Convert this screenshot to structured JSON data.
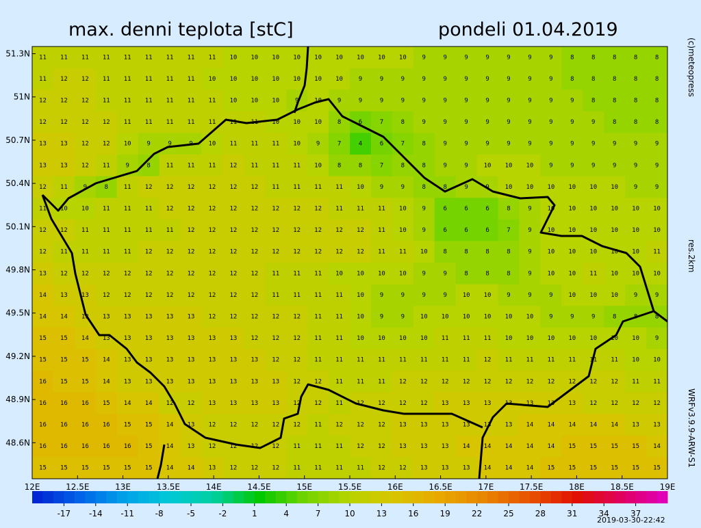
{
  "header": {
    "title": "max. denni teplota [stC]",
    "date": "pondeli 01.04.2019"
  },
  "side_texts": {
    "copyright": "(c)meteopress",
    "resolution": "res.2km",
    "model": "WRFv3.9.9-ARW-S1",
    "timestamp": "2019-03-30-22:42"
  },
  "map": {
    "xlim": [
      12,
      19
    ],
    "ylim": [
      48.35,
      51.35
    ],
    "xticks": [
      {
        "value": 12,
        "label": "12E"
      },
      {
        "value": 12.5,
        "label": "12.5E"
      },
      {
        "value": 13,
        "label": "13E"
      },
      {
        "value": 13.5,
        "label": "13.5E"
      },
      {
        "value": 14,
        "label": "14E"
      },
      {
        "value": 14.5,
        "label": "14.5E"
      },
      {
        "value": 15,
        "label": "15E"
      },
      {
        "value": 15.5,
        "label": "15.5E"
      },
      {
        "value": 16,
        "label": "16E"
      },
      {
        "value": 16.5,
        "label": "16.5E"
      },
      {
        "value": 17,
        "label": "17E"
      },
      {
        "value": 17.5,
        "label": "17.5E"
      },
      {
        "value": 18,
        "label": "18E"
      },
      {
        "value": 18.5,
        "label": "18.5E"
      },
      {
        "value": 19,
        "label": "19E"
      }
    ],
    "yticks": [
      {
        "value": 51.3,
        "label": "51.3N"
      },
      {
        "value": 51,
        "label": "51N"
      },
      {
        "value": 50.7,
        "label": "50.7N"
      },
      {
        "value": 50.4,
        "label": "50.4N"
      },
      {
        "value": 50.1,
        "label": "50.1N"
      },
      {
        "value": 49.8,
        "label": "49.8N"
      },
      {
        "value": 49.5,
        "label": "49.5N"
      },
      {
        "value": 49.2,
        "label": "49.2N"
      },
      {
        "value": 48.9,
        "label": "48.9N"
      },
      {
        "value": 48.6,
        "label": "48.6N"
      }
    ],
    "grid": [
      [
        11,
        11,
        11,
        11,
        11,
        11,
        11,
        11,
        11,
        10,
        10,
        10,
        10,
        10,
        10,
        10,
        10,
        10,
        9,
        9,
        9,
        9,
        9,
        9,
        9,
        8,
        8,
        8,
        8,
        8
      ],
      [
        11,
        12,
        12,
        11,
        11,
        11,
        11,
        11,
        10,
        10,
        10,
        10,
        10,
        10,
        10,
        9,
        9,
        9,
        9,
        9,
        9,
        9,
        9,
        9,
        9,
        8,
        8,
        8,
        8,
        8
      ],
      [
        12,
        12,
        12,
        11,
        11,
        11,
        11,
        11,
        11,
        10,
        10,
        10,
        9,
        10,
        9,
        9,
        9,
        9,
        9,
        9,
        9,
        9,
        9,
        9,
        9,
        9,
        8,
        8,
        8,
        8
      ],
      [
        12,
        12,
        12,
        12,
        11,
        11,
        11,
        11,
        11,
        11,
        11,
        10,
        10,
        10,
        8,
        6,
        7,
        8,
        9,
        9,
        9,
        9,
        9,
        9,
        9,
        9,
        9,
        8,
        8,
        8
      ],
      [
        13,
        13,
        12,
        12,
        10,
        9,
        9,
        9,
        10,
        11,
        11,
        11,
        10,
        9,
        7,
        4,
        6,
        7,
        8,
        9,
        9,
        9,
        9,
        9,
        9,
        9,
        9,
        9,
        9,
        9
      ],
      [
        13,
        13,
        12,
        11,
        9,
        8,
        11,
        11,
        11,
        12,
        11,
        11,
        11,
        10,
        8,
        8,
        7,
        8,
        8,
        9,
        9,
        10,
        10,
        10,
        9,
        9,
        9,
        9,
        9,
        9
      ],
      [
        12,
        11,
        9,
        8,
        11,
        12,
        12,
        12,
        12,
        12,
        12,
        11,
        11,
        11,
        11,
        10,
        9,
        9,
        8,
        8,
        9,
        9,
        10,
        10,
        10,
        10,
        10,
        10,
        9,
        9
      ],
      [
        11,
        10,
        10,
        11,
        11,
        11,
        12,
        12,
        12,
        12,
        12,
        12,
        12,
        12,
        11,
        11,
        11,
        10,
        9,
        6,
        6,
        6,
        8,
        9,
        10,
        10,
        10,
        10,
        10,
        10
      ],
      [
        12,
        12,
        11,
        11,
        11,
        11,
        11,
        12,
        12,
        12,
        12,
        12,
        12,
        12,
        12,
        12,
        11,
        10,
        9,
        6,
        6,
        6,
        7,
        9,
        10,
        10,
        10,
        10,
        10,
        10
      ],
      [
        12,
        11,
        11,
        11,
        11,
        12,
        12,
        12,
        12,
        12,
        12,
        12,
        12,
        12,
        12,
        12,
        11,
        11,
        10,
        8,
        8,
        8,
        8,
        9,
        10,
        10,
        10,
        10,
        10,
        11
      ],
      [
        13,
        12,
        12,
        12,
        12,
        12,
        12,
        12,
        12,
        12,
        12,
        11,
        11,
        11,
        10,
        10,
        10,
        10,
        9,
        9,
        8,
        8,
        8,
        9,
        10,
        10,
        11,
        10,
        10,
        10
      ],
      [
        14,
        13,
        13,
        12,
        12,
        12,
        12,
        12,
        12,
        12,
        12,
        11,
        11,
        11,
        11,
        10,
        9,
        9,
        9,
        9,
        10,
        10,
        9,
        9,
        9,
        10,
        10,
        10,
        9,
        9
      ],
      [
        14,
        14,
        13,
        13,
        13,
        13,
        13,
        13,
        12,
        12,
        12,
        12,
        12,
        11,
        11,
        10,
        9,
        9,
        10,
        10,
        10,
        10,
        10,
        10,
        9,
        9,
        9,
        8,
        8,
        8
      ],
      [
        15,
        15,
        14,
        13,
        13,
        13,
        13,
        13,
        13,
        13,
        12,
        12,
        12,
        11,
        11,
        10,
        10,
        10,
        10,
        11,
        11,
        11,
        10,
        10,
        10,
        10,
        10,
        10,
        10,
        9
      ],
      [
        15,
        15,
        15,
        14,
        13,
        13,
        13,
        13,
        13,
        13,
        13,
        12,
        12,
        11,
        11,
        11,
        11,
        11,
        11,
        11,
        11,
        12,
        11,
        11,
        11,
        11,
        11,
        11,
        10,
        10
      ],
      [
        16,
        15,
        15,
        14,
        13,
        13,
        13,
        13,
        13,
        13,
        13,
        13,
        12,
        12,
        11,
        11,
        11,
        12,
        12,
        12,
        12,
        12,
        12,
        12,
        12,
        12,
        12,
        12,
        11,
        11
      ],
      [
        16,
        16,
        16,
        15,
        14,
        14,
        12,
        12,
        13,
        13,
        13,
        13,
        12,
        12,
        11,
        12,
        12,
        12,
        12,
        13,
        13,
        13,
        13,
        13,
        13,
        13,
        12,
        12,
        12,
        12
      ],
      [
        16,
        16,
        16,
        16,
        15,
        15,
        14,
        13,
        12,
        12,
        12,
        12,
        12,
        11,
        12,
        12,
        12,
        13,
        13,
        13,
        13,
        13,
        13,
        14,
        14,
        14,
        14,
        14,
        13,
        13
      ],
      [
        16,
        16,
        16,
        16,
        16,
        15,
        14,
        13,
        12,
        12,
        12,
        12,
        11,
        11,
        11,
        12,
        12,
        13,
        13,
        13,
        14,
        14,
        14,
        14,
        14,
        15,
        15,
        15,
        15,
        14
      ],
      [
        15,
        15,
        15,
        15,
        15,
        15,
        14,
        14,
        13,
        12,
        12,
        12,
        11,
        11,
        11,
        11,
        12,
        12,
        13,
        13,
        13,
        14,
        14,
        14,
        15,
        15,
        15,
        15,
        15,
        15
      ]
    ]
  },
  "colorbar": {
    "range": [
      -20,
      40
    ],
    "ticks": [
      -17,
      -14,
      -11,
      -8,
      -5,
      -2,
      1,
      4,
      7,
      10,
      13,
      16,
      19,
      22,
      25,
      28,
      31,
      34,
      37
    ],
    "colors": [
      "#0020d0",
      "#0060e8",
      "#00a0e8",
      "#00c8d8",
      "#00d0a0",
      "#00c800",
      "#70d400",
      "#b8d400",
      "#d8c400",
      "#e8a800",
      "#e88400",
      "#e85000",
      "#e01000",
      "#e00060",
      "#e000c0"
    ]
  }
}
